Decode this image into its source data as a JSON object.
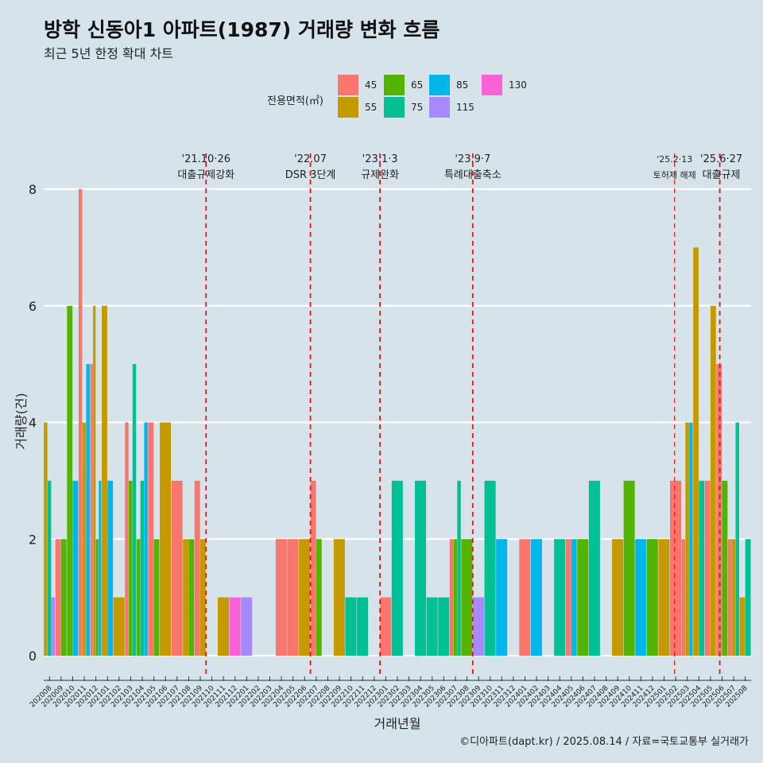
{
  "chart_data": {
    "type": "bar",
    "title": "방학 신동아1 아파트(1987) 거래량 변화 흐름",
    "subtitle": "최근 5년 한정 확대 차트",
    "xlabel": "거래년월",
    "ylabel": "거래량(건)",
    "ylim": [
      0,
      8
    ],
    "y_ticks": [
      0,
      2,
      4,
      6,
      8
    ],
    "legend_title": "전용면적(㎡)",
    "categories": [
      "202008",
      "202009",
      "202010",
      "202011",
      "202012",
      "202101",
      "202102",
      "202103",
      "202104",
      "202105",
      "202106",
      "202107",
      "202108",
      "202109",
      "202110",
      "202111",
      "202112",
      "202201",
      "202202",
      "202203",
      "202204",
      "202205",
      "202206",
      "202207",
      "202208",
      "202209",
      "202210",
      "202211",
      "202212",
      "202301",
      "202302",
      "202303",
      "202304",
      "202305",
      "202306",
      "202307",
      "202308",
      "202309",
      "202310",
      "202311",
      "202312",
      "202401",
      "202402",
      "202403",
      "202404",
      "202405",
      "202406",
      "202407",
      "202408",
      "202409",
      "202410",
      "202411",
      "202412",
      "202501",
      "202502",
      "202503",
      "202504",
      "202505",
      "202506",
      "202507",
      "202508"
    ],
    "series": [
      {
        "name": "45",
        "color": "#f8766d",
        "values": [
          0,
          2,
          0,
          8,
          5,
          0,
          0,
          4,
          0,
          4,
          0,
          3,
          0,
          3,
          0,
          0,
          0,
          0,
          0,
          0,
          2,
          2,
          0,
          3,
          0,
          0,
          0,
          0,
          0,
          1,
          0,
          0,
          0,
          0,
          0,
          2,
          0,
          0,
          0,
          0,
          0,
          2,
          0,
          0,
          0,
          2,
          0,
          0,
          0,
          0,
          0,
          0,
          0,
          0,
          3,
          2,
          0,
          3,
          5,
          2,
          0
        ]
      },
      {
        "name": "55",
        "color": "#c49a00",
        "values": [
          4,
          0,
          0,
          4,
          6,
          6,
          1,
          0,
          0,
          0,
          4,
          0,
          2,
          2,
          0,
          1,
          0,
          0,
          0,
          0,
          0,
          0,
          2,
          0,
          0,
          2,
          0,
          0,
          0,
          0,
          0,
          0,
          0,
          0,
          0,
          0,
          0,
          0,
          0,
          0,
          0,
          0,
          0,
          0,
          0,
          0,
          0,
          0,
          0,
          2,
          0,
          0,
          0,
          2,
          0,
          4,
          7,
          6,
          0,
          2,
          1
        ]
      },
      {
        "name": "65",
        "color": "#53b400",
        "values": [
          0,
          2,
          6,
          0,
          2,
          0,
          0,
          3,
          2,
          2,
          0,
          0,
          2,
          0,
          0,
          0,
          0,
          0,
          0,
          0,
          0,
          0,
          0,
          2,
          0,
          0,
          0,
          0,
          0,
          0,
          0,
          0,
          0,
          0,
          0,
          2,
          2,
          0,
          0,
          0,
          0,
          0,
          0,
          0,
          0,
          0,
          2,
          0,
          0,
          0,
          3,
          0,
          2,
          0,
          0,
          0,
          0,
          0,
          3,
          0,
          0
        ]
      },
      {
        "name": "75",
        "color": "#00c094",
        "values": [
          3,
          0,
          0,
          0,
          0,
          0,
          0,
          5,
          3,
          0,
          0,
          0,
          0,
          0,
          0,
          0,
          0,
          0,
          0,
          0,
          0,
          0,
          0,
          0,
          0,
          0,
          1,
          1,
          0,
          0,
          3,
          0,
          3,
          1,
          1,
          3,
          0,
          0,
          3,
          0,
          0,
          0,
          0,
          0,
          2,
          0,
          0,
          3,
          0,
          0,
          0,
          0,
          0,
          0,
          0,
          0,
          3,
          0,
          0,
          4,
          2
        ]
      },
      {
        "name": "85",
        "color": "#00b6eb",
        "values": [
          0,
          0,
          3,
          5,
          3,
          3,
          0,
          0,
          4,
          0,
          0,
          0,
          0,
          0,
          0,
          0,
          0,
          0,
          0,
          0,
          0,
          0,
          0,
          0,
          0,
          0,
          0,
          0,
          0,
          0,
          0,
          0,
          0,
          0,
          0,
          0,
          0,
          0,
          0,
          2,
          0,
          0,
          2,
          0,
          0,
          2,
          0,
          0,
          0,
          0,
          0,
          2,
          0,
          0,
          0,
          4,
          0,
          0,
          0,
          0,
          0
        ]
      },
      {
        "name": "115",
        "color": "#a58aff",
        "values": [
          1,
          0,
          0,
          0,
          0,
          0,
          0,
          0,
          0,
          0,
          0,
          0,
          0,
          0,
          0,
          0,
          0,
          1,
          0,
          0,
          0,
          0,
          0,
          0,
          0,
          0,
          0,
          0,
          0,
          0,
          0,
          0,
          0,
          0,
          0,
          0,
          0,
          1,
          0,
          0,
          0,
          0,
          0,
          0,
          0,
          0,
          0,
          0,
          0,
          0,
          0,
          0,
          0,
          0,
          0,
          0,
          0,
          0,
          0,
          0,
          0
        ]
      },
      {
        "name": "130",
        "color": "#fb61d7",
        "values": [
          0,
          0,
          0,
          0,
          0,
          0,
          0,
          0,
          0,
          0,
          0,
          0,
          0,
          0,
          0,
          0,
          1,
          0,
          0,
          0,
          0,
          0,
          0,
          0,
          0,
          0,
          0,
          0,
          0,
          0,
          0,
          0,
          0,
          0,
          0,
          0,
          0,
          0,
          0,
          0,
          0,
          0,
          0,
          0,
          0,
          0,
          0,
          0,
          0,
          0,
          0,
          0,
          0,
          0,
          0,
          0,
          0,
          0,
          0,
          0,
          0
        ]
      }
    ],
    "legend_order": [
      "45",
      "55",
      "65",
      "75",
      "85",
      "115",
      "130"
    ],
    "events": [
      {
        "date": "'21.10·26",
        "label": "대출규제강화",
        "x_index": 14.0
      },
      {
        "date": "'22.07",
        "label": "DSR 3단계",
        "x_index": 23.0
      },
      {
        "date": "'23.1·3",
        "label": "규제완화",
        "x_index": 29.0
      },
      {
        "date": "'23.9·7",
        "label": "특례대출축소",
        "x_index": 37.0
      },
      {
        "date": "'25.2·13",
        "label": "토허제 해제",
        "x_index": 54.4
      },
      {
        "date": "'25.6·27",
        "label": "대출규제",
        "x_index": 58.3
      }
    ]
  },
  "caption": "©디아파트(dapt.kr) / 2025.08.14 / 자료=국토교통부 실거래가"
}
